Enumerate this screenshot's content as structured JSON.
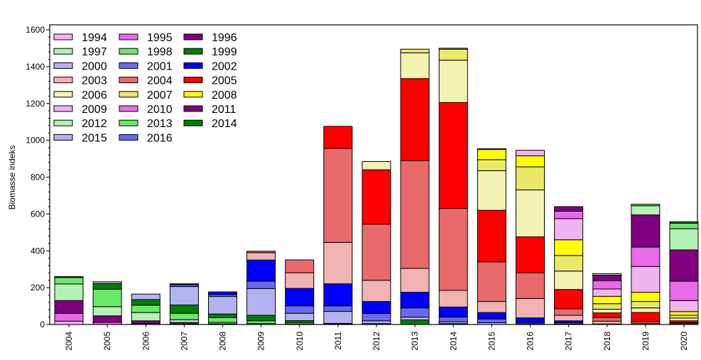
{
  "chart_data": {
    "type": "bar",
    "stacked": true,
    "title": "",
    "xlabel": "",
    "ylabel": "Biomasse indeks",
    "ylim": [
      0,
      1600
    ],
    "yticks": [
      0,
      200,
      400,
      600,
      800,
      1000,
      1200,
      1400,
      1600
    ],
    "grid": false,
    "legend_position": "top-left",
    "legend_columns": 3,
    "categories": [
      "2004",
      "2005",
      "2006",
      "2007",
      "2008",
      "2009",
      "2010",
      "2011",
      "2012",
      "2013",
      "2014",
      "2015",
      "2016",
      "2017",
      "2018",
      "2019",
      "2020"
    ],
    "series": [
      {
        "name": "1994",
        "color": "#f2b3f2",
        "values": [
          18,
          0,
          0,
          0,
          0,
          0,
          0,
          0,
          0,
          0,
          0,
          0,
          0,
          0,
          0,
          0,
          0
        ]
      },
      {
        "name": "1995",
        "color": "#e86ae8",
        "values": [
          42,
          12,
          5,
          3,
          0,
          0,
          0,
          0,
          0,
          0,
          0,
          0,
          0,
          0,
          0,
          0,
          0
        ]
      },
      {
        "name": "1996",
        "color": "#800080",
        "values": [
          70,
          35,
          15,
          8,
          4,
          0,
          0,
          0,
          0,
          0,
          0,
          0,
          0,
          0,
          0,
          0,
          0
        ]
      },
      {
        "name": "1997",
        "color": "#b3f2b3",
        "values": [
          90,
          50,
          45,
          15,
          8,
          5,
          3,
          0,
          0,
          0,
          0,
          0,
          0,
          0,
          0,
          0,
          0
        ]
      },
      {
        "name": "1998",
        "color": "#6ae86a",
        "values": [
          35,
          95,
          40,
          35,
          25,
          15,
          8,
          3,
          0,
          0,
          0,
          0,
          0,
          0,
          0,
          0,
          0
        ]
      },
      {
        "name": "1999",
        "color": "#008000",
        "values": [
          5,
          30,
          30,
          45,
          20,
          30,
          10,
          3,
          5,
          25,
          5,
          0,
          0,
          0,
          0,
          0,
          0
        ]
      },
      {
        "name": "2000",
        "color": "#b3b3f2",
        "values": [
          0,
          10,
          30,
          100,
          95,
          145,
          40,
          65,
          15,
          15,
          10,
          10,
          4,
          3,
          0,
          0,
          0
        ]
      },
      {
        "name": "2001",
        "color": "#6a6ae8",
        "values": [
          0,
          0,
          0,
          10,
          10,
          40,
          40,
          30,
          40,
          50,
          25,
          20,
          7,
          7,
          0,
          0,
          0
        ]
      },
      {
        "name": "2002",
        "color": "#0000ff",
        "values": [
          0,
          0,
          0,
          5,
          15,
          115,
          95,
          120,
          65,
          85,
          55,
          35,
          25,
          10,
          3,
          0,
          0
        ]
      },
      {
        "name": "2003",
        "color": "#f2b3b3",
        "values": [
          0,
          0,
          0,
          0,
          0,
          40,
          85,
          225,
          115,
          130,
          90,
          60,
          105,
          30,
          15,
          5,
          5
        ]
      },
      {
        "name": "2004",
        "color": "#e86a6a",
        "values": [
          0,
          0,
          0,
          0,
          0,
          8,
          70,
          510,
          305,
          585,
          445,
          215,
          140,
          35,
          20,
          10,
          5
        ]
      },
      {
        "name": "2005",
        "color": "#ff0000",
        "values": [
          0,
          0,
          0,
          0,
          0,
          0,
          0,
          120,
          295,
          445,
          575,
          280,
          195,
          105,
          25,
          50,
          10
        ]
      },
      {
        "name": "2006",
        "color": "#f2f2b3",
        "values": [
          0,
          0,
          0,
          0,
          0,
          0,
          0,
          0,
          45,
          140,
          230,
          215,
          255,
          100,
          20,
          25,
          15
        ]
      },
      {
        "name": "2007",
        "color": "#e8e86a",
        "values": [
          0,
          0,
          0,
          0,
          0,
          0,
          0,
          0,
          0,
          20,
          60,
          60,
          125,
          85,
          30,
          35,
          15
        ]
      },
      {
        "name": "2008",
        "color": "#ffff00",
        "values": [
          0,
          0,
          0,
          0,
          0,
          0,
          0,
          0,
          0,
          0,
          5,
          55,
          60,
          85,
          40,
          50,
          20
        ]
      },
      {
        "name": "2009",
        "color": "#f2b3f2",
        "values": [
          0,
          0,
          0,
          0,
          0,
          0,
          0,
          0,
          0,
          0,
          0,
          5,
          30,
          115,
          40,
          140,
          60
        ]
      },
      {
        "name": "2010",
        "color": "#e86ae8",
        "values": [
          0,
          0,
          0,
          0,
          0,
          0,
          0,
          0,
          0,
          0,
          0,
          0,
          0,
          40,
          45,
          105,
          105
        ]
      },
      {
        "name": "2011",
        "color": "#800080",
        "values": [
          0,
          0,
          0,
          0,
          0,
          0,
          0,
          0,
          0,
          0,
          0,
          0,
          0,
          25,
          30,
          175,
          170
        ]
      },
      {
        "name": "2012",
        "color": "#b3f2b3",
        "values": [
          0,
          0,
          0,
          0,
          0,
          0,
          0,
          0,
          0,
          0,
          0,
          0,
          0,
          0,
          8,
          50,
          115
        ]
      },
      {
        "name": "2013",
        "color": "#6ae86a",
        "values": [
          0,
          0,
          0,
          0,
          0,
          0,
          0,
          0,
          0,
          0,
          0,
          0,
          0,
          0,
          0,
          8,
          30
        ]
      },
      {
        "name": "2014",
        "color": "#008000",
        "values": [
          0,
          0,
          0,
          0,
          0,
          0,
          0,
          0,
          0,
          0,
          0,
          0,
          0,
          0,
          0,
          0,
          8
        ]
      },
      {
        "name": "2015",
        "color": "#b3b3f2",
        "values": [
          0,
          0,
          0,
          0,
          0,
          0,
          0,
          0,
          0,
          0,
          0,
          0,
          0,
          0,
          0,
          0,
          0
        ]
      },
      {
        "name": "2016",
        "color": "#6a6ae8",
        "values": [
          0,
          0,
          0,
          0,
          0,
          0,
          0,
          0,
          0,
          0,
          0,
          0,
          0,
          0,
          0,
          0,
          0
        ]
      }
    ]
  }
}
